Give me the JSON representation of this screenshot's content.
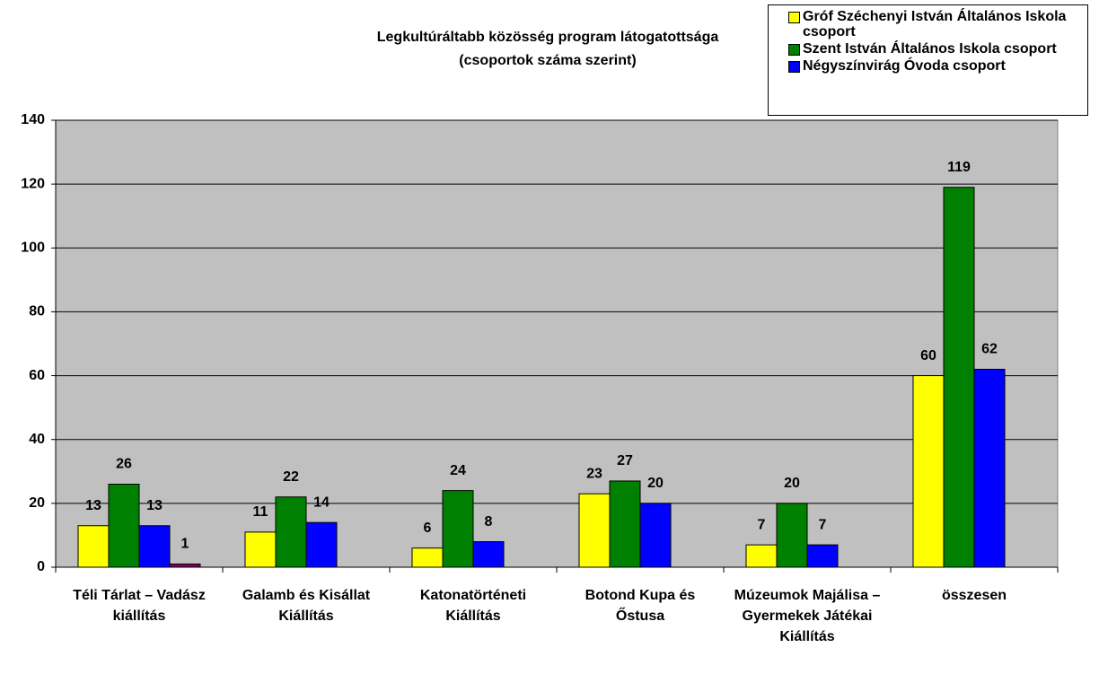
{
  "chart_data": {
    "type": "bar",
    "title": "Legkultúráltabb közösség program látogatottsága",
    "subtitle": "(csoportok száma szerint)",
    "categories": [
      "Téli Tárlat – Vadász kiállítás",
      "Galamb és Kisállat Kiállítás",
      "Katonatörténeti Kiállítás",
      "Botond Kupa és Őstusa",
      "Múzeumok Majálisa – Gyermekek Játékai Kiállítás",
      "összesen"
    ],
    "series": [
      {
        "name": "Gróf Széchenyi István Általános Iskola csoport",
        "color": "#ffff00",
        "values": [
          13,
          11,
          6,
          23,
          7,
          60
        ]
      },
      {
        "name": "Szent István Általános Iskola csoport",
        "color": "#008000",
        "values": [
          26,
          22,
          24,
          27,
          20,
          119
        ]
      },
      {
        "name": "Négyszínvirág Óvoda csoport",
        "color": "#0000ff",
        "values": [
          13,
          14,
          8,
          20,
          7,
          62
        ]
      },
      {
        "color": "#800060",
        "values": [
          1,
          null,
          null,
          null,
          null,
          null
        ]
      }
    ],
    "ylim": [
      0,
      140
    ],
    "yticks": [
      0,
      20,
      40,
      60,
      80,
      100,
      120,
      140
    ],
    "grid": true,
    "legend": "top-right"
  }
}
